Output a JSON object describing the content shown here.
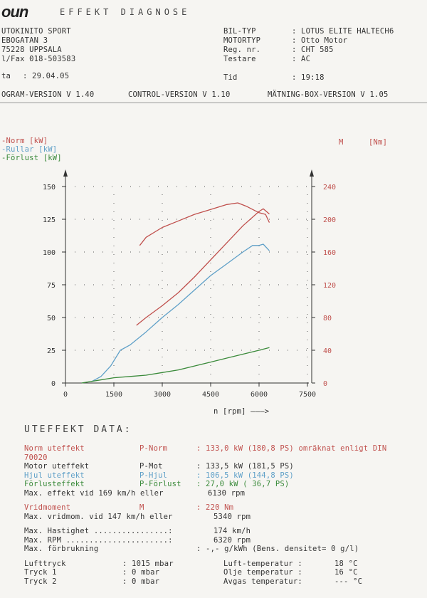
{
  "header": {
    "logo": "oun",
    "title": "EFFEKT  DIAGNOSE"
  },
  "company": {
    "line1": "UTOKINITO SPORT",
    "line2": "EBOGATAN 3",
    "line3": "75228 UPPSALA",
    "line4": "l/Fax 018-503583",
    "date_label": "ta",
    "date_value": ": 29.04.05"
  },
  "vehicle": {
    "rows": [
      {
        "label": "BIL-TYP",
        "value": ": LOTUS ELITE HALTECH6"
      },
      {
        "label": "MOTORTYP",
        "value": ": Otto Motor"
      },
      {
        "label": "Reg. nr.",
        "value": ": CHT 585"
      },
      {
        "label": "Testare",
        "value": ": AC"
      }
    ],
    "time_label": "Tid",
    "time_value": ": 19:18"
  },
  "versions": {
    "program": "OGRAM-VERSION V 1.40",
    "control": "CONTROL-VERSION V 1.10",
    "box": "MÄTNING-BOX-VERSION V 1.05"
  },
  "legend": {
    "left": [
      {
        "text": "-Norm   [kW]",
        "color": "#c0504d"
      },
      {
        "text": "-Rullar [kW]",
        "color": "#5fa0c8"
      },
      {
        "text": "-Förlust [kW]",
        "color": "#3a8a3a"
      }
    ],
    "right_symbol": "M",
    "right_unit": "[Nm]"
  },
  "chart_data": {
    "type": "line",
    "xlabel": "n [rpm] ———>",
    "xlim": [
      0,
      7500
    ],
    "ylim_left": [
      0,
      150
    ],
    "ylim_right": [
      0,
      240
    ],
    "x_ticks": [
      0,
      1500,
      3000,
      4500,
      6000,
      7500
    ],
    "y_ticks_left": [
      0,
      25,
      50,
      75,
      100,
      125,
      150
    ],
    "y_ticks_right": [
      0,
      40,
      80,
      120,
      160,
      200,
      240
    ],
    "grid": true,
    "colors": {
      "norm": "#c0504d",
      "rullar": "#5fa0c8",
      "forlust": "#3a8a3a",
      "torque": "#c0504d"
    },
    "series": [
      {
        "name": "Norm",
        "axis": "left",
        "color": "#c0504d",
        "x": [
          2200,
          2500,
          3000,
          3500,
          4000,
          4500,
          5000,
          5500,
          6000,
          6130,
          6320
        ],
        "y": [
          44,
          50,
          59,
          69,
          81,
          94,
          107,
          120,
          131,
          133,
          129
        ]
      },
      {
        "name": "Rullar",
        "axis": "left",
        "color": "#5fa0c8",
        "x": [
          800,
          1100,
          1400,
          1700,
          2000,
          2500,
          3000,
          3500,
          4000,
          4500,
          5000,
          5500,
          5800,
          6000,
          6130,
          6320
        ],
        "y": [
          1,
          5,
          13,
          25,
          29,
          39,
          50,
          60,
          71,
          82,
          91,
          100,
          105,
          105,
          106,
          101
        ]
      },
      {
        "name": "Förlust",
        "axis": "left",
        "color": "#3a8a3a",
        "x": [
          500,
          1000,
          1500,
          2000,
          2500,
          3000,
          3500,
          4000,
          4500,
          5000,
          5500,
          6000,
          6320
        ],
        "y": [
          0,
          2,
          4,
          5,
          6,
          8,
          10,
          13,
          16,
          19,
          22,
          25,
          27
        ]
      },
      {
        "name": "M",
        "axis": "right",
        "color": "#c0504d",
        "x": [
          2300,
          2500,
          3000,
          3500,
          4000,
          4500,
          5000,
          5340,
          5600,
          5800,
          6000,
          6200,
          6320
        ],
        "y": [
          168,
          178,
          190,
          198,
          206,
          212,
          218,
          220,
          216,
          212,
          208,
          206,
          196
        ]
      }
    ]
  },
  "data_section": {
    "title": "UTEFFEKT  DATA:",
    "rows": [
      {
        "name": "Norm uteffekt",
        "sym": "P-Norm",
        "val": ": 133,0 kW (180,8 PS) omräknat enligt DIN",
        "color": "#c0504d"
      },
      {
        "name": "70020",
        "sym": "",
        "val": "",
        "color": "#c0504d"
      },
      {
        "name": "Motor uteffekt",
        "sym": "P-Mot",
        "val": ": 133,5 kW (181,5 PS)",
        "color": "#333333"
      },
      {
        "name": "Hjul uteffekt",
        "sym": "P-Hjul",
        "val": ": 106,5 kW (144,8 PS)",
        "color": "#5fa0c8"
      },
      {
        "name": "Förlusteffekt",
        "sym": "P-Förlust",
        "val": ": 27,0 kW ( 36,7 PS)",
        "color": "#3a8a3a"
      },
      {
        "name": "Max. effekt vid 169 km/h eller",
        "sym": "",
        "val": "6130 rpm",
        "color": "#333333"
      }
    ],
    "torque": [
      {
        "name": "Vridmoment",
        "sym": "M",
        "val": ":  220 Nm",
        "color": "#c0504d"
      },
      {
        "name": "Max. vridmom. vid 147 km/h eller",
        "sym": "",
        "val": "5340 rpm",
        "color": "#333333"
      }
    ],
    "max": [
      {
        "name": "Max. Hastighet ................:",
        "val": "174 km/h"
      },
      {
        "name": "Max. RPM ......................:",
        "val": "6320 rpm"
      },
      {
        "name": "Max. förbrukning",
        "val": ":  -,- g/kWh (Bens. densitet=   0 g/l)"
      }
    ],
    "env_left": [
      {
        "name": "Lufttryck",
        "val": ":   1015 mbar"
      },
      {
        "name": "Tryck 1",
        "val": ":      0 mbar"
      },
      {
        "name": "Tryck 2",
        "val": ":      0 mbar"
      }
    ],
    "env_right": [
      {
        "name": "Luft-temperatur :",
        "val": "18 °C"
      },
      {
        "name": "Olje temperatur :",
        "val": "16 °C"
      },
      {
        "name": "Avgas temperatur:",
        "val": "--- °C"
      }
    ]
  }
}
